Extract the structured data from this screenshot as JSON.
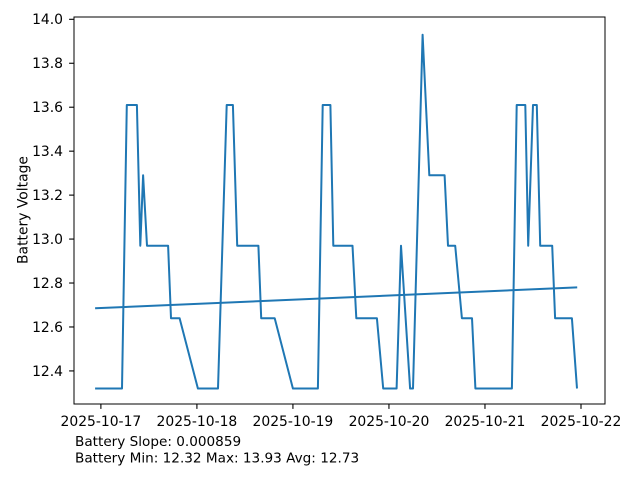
{
  "chart_data": {
    "type": "line",
    "title": "",
    "xlabel": "",
    "ylabel": "Battery Voltage",
    "grid": false,
    "legend": null,
    "line_color": "#1f77b4",
    "ylabel_color": "#1f77b4",
    "axis_color": "#000000",
    "x_unit": "day of month, October 2025",
    "xlim_days": [
      16.72,
      22.25
    ],
    "ylim": [
      12.2495,
      14.0105
    ],
    "yticks": [
      {
        "value": 12.4,
        "label": "12.4"
      },
      {
        "value": 12.6,
        "label": "12.6"
      },
      {
        "value": 12.8,
        "label": "12.8"
      },
      {
        "value": 13.0,
        "label": "13.0"
      },
      {
        "value": 13.2,
        "label": "13.2"
      },
      {
        "value": 13.4,
        "label": "13.4"
      },
      {
        "value": 13.6,
        "label": "13.6"
      },
      {
        "value": 13.8,
        "label": "13.8"
      },
      {
        "value": 14.0,
        "label": "14.0"
      }
    ],
    "xticks": [
      {
        "value": 17,
        "label": "2025-10-17"
      },
      {
        "value": 18,
        "label": "2025-10-18"
      },
      {
        "value": 19,
        "label": "2025-10-19"
      },
      {
        "value": 20,
        "label": "2025-10-20"
      },
      {
        "value": 21,
        "label": "2025-10-21"
      },
      {
        "value": 22,
        "label": "2025-10-22"
      }
    ],
    "series": [
      {
        "name": "Battery Voltage",
        "points": [
          [
            16.94,
            12.32
          ],
          [
            17.22,
            12.32
          ],
          [
            17.27,
            13.61
          ],
          [
            17.375,
            13.61
          ],
          [
            17.41,
            12.97
          ],
          [
            17.44,
            13.29
          ],
          [
            17.48,
            12.97
          ],
          [
            17.7,
            12.97
          ],
          [
            17.73,
            12.64
          ],
          [
            17.82,
            12.64
          ],
          [
            18.01,
            12.32
          ],
          [
            18.22,
            12.32
          ],
          [
            18.31,
            13.61
          ],
          [
            18.375,
            13.61
          ],
          [
            18.42,
            12.97
          ],
          [
            18.64,
            12.97
          ],
          [
            18.67,
            12.64
          ],
          [
            18.81,
            12.64
          ],
          [
            19.0,
            12.32
          ],
          [
            19.26,
            12.32
          ],
          [
            19.31,
            13.61
          ],
          [
            19.39,
            13.61
          ],
          [
            19.42,
            12.97
          ],
          [
            19.62,
            12.97
          ],
          [
            19.66,
            12.64
          ],
          [
            19.875,
            12.64
          ],
          [
            19.94,
            12.32
          ],
          [
            20.08,
            12.32
          ],
          [
            20.125,
            12.97
          ],
          [
            20.22,
            12.32
          ],
          [
            20.25,
            12.32
          ],
          [
            20.35,
            13.93
          ],
          [
            20.42,
            13.29
          ],
          [
            20.58,
            13.29
          ],
          [
            20.615,
            12.97
          ],
          [
            20.69,
            12.97
          ],
          [
            20.76,
            12.64
          ],
          [
            20.865,
            12.64
          ],
          [
            20.9,
            12.32
          ],
          [
            21.28,
            12.32
          ],
          [
            21.33,
            13.61
          ],
          [
            21.42,
            13.61
          ],
          [
            21.45,
            12.97
          ],
          [
            21.5,
            13.61
          ],
          [
            21.54,
            13.61
          ],
          [
            21.575,
            12.97
          ],
          [
            21.7,
            12.97
          ],
          [
            21.73,
            12.64
          ],
          [
            21.905,
            12.64
          ],
          [
            21.958,
            12.32
          ]
        ]
      },
      {
        "name": "Battery Trend",
        "points": [
          [
            16.94,
            12.685
          ],
          [
            21.96,
            12.78
          ]
        ]
      }
    ]
  },
  "footer": {
    "slope_line": "Battery Slope: 0.000859",
    "stats_line": "Battery Min: 12.32 Max: 13.93 Avg: 12.73"
  },
  "stats": {
    "battery_slope": 0.000859,
    "battery_min": 12.32,
    "battery_max": 13.93,
    "battery_avg": 12.73
  }
}
